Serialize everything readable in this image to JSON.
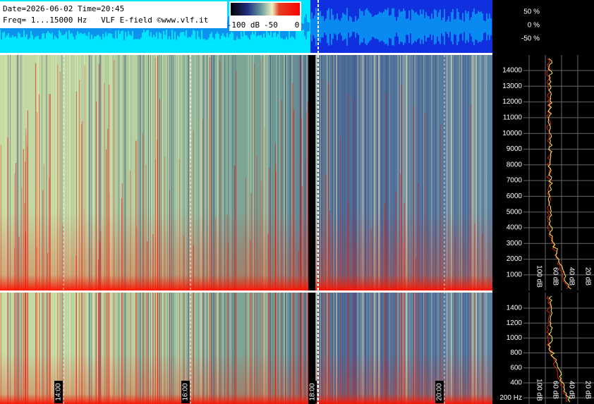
{
  "header": {
    "date_line": "Date=2026-06-02 Time=20:45",
    "freq_line": "Freq= 1...15000 Hz   VLF E-field ©www.vlf.it"
  },
  "colorbar": {
    "labels": [
      "-100 dB",
      "-50",
      "0"
    ]
  },
  "waveform": {
    "labels": [
      "50 %",
      "0 %",
      "-50 %"
    ]
  },
  "spectrogram": {
    "freq_labels": [
      "14000",
      "13000",
      "12000",
      "11000",
      "10000",
      "9000",
      "8000",
      "7000",
      "6000",
      "5000",
      "4000",
      "3000",
      "2000",
      "1000"
    ],
    "time_labels": [
      "14:00",
      "16:00",
      "18:00",
      "20:00"
    ]
  },
  "zoom": {
    "freq_labels": [
      "1400",
      "1200",
      "1000",
      "800",
      "600",
      "400",
      "200 Hz"
    ]
  },
  "spectrum": {
    "db_labels": [
      "100 dB",
      "60 dB",
      "40 dB",
      "20 dB"
    ]
  }
}
